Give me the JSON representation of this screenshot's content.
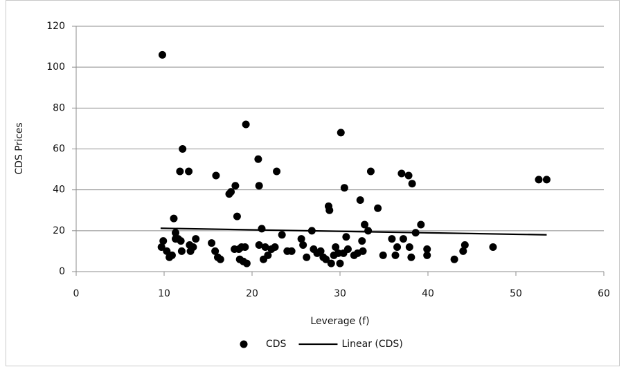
{
  "chart_data": {
    "type": "scatter",
    "x_label": "Leverage (f)",
    "y_label": "CDS Prices",
    "xlim": [
      0,
      60
    ],
    "xticks": [
      0,
      10,
      20,
      30,
      40,
      50,
      60
    ],
    "ylim": [
      0,
      120
    ],
    "yticks": [
      0,
      20,
      40,
      60,
      80,
      100,
      120
    ],
    "grid": true,
    "legend": "bottom",
    "series": [
      {
        "name": "CDS",
        "color": "#000000",
        "mode": "markers",
        "x": [
          9.8,
          9.7,
          9.9,
          10.3,
          10.6,
          10.9,
          11.1,
          11.3,
          11.3,
          11.6,
          11.9,
          12.0,
          11.8,
          12.1,
          12.8,
          12.9,
          13.0,
          13.3,
          13.6,
          15.4,
          15.8,
          15.9,
          16.1,
          16.4,
          17.4,
          17.6,
          18.1,
          18.0,
          18.3,
          18.5,
          18.6,
          18.8,
          19.0,
          19.2,
          19.3,
          19.4,
          20.7,
          20.8,
          20.8,
          21.1,
          21.3,
          21.5,
          21.8,
          22.2,
          22.6,
          22.8,
          23.4,
          24.0,
          24.5,
          25.6,
          25.8,
          26.2,
          26.8,
          27.0,
          27.4,
          27.8,
          28.1,
          28.4,
          28.7,
          28.8,
          29.0,
          29.3,
          29.5,
          29.8,
          30.0,
          30.1,
          30.4,
          30.5,
          30.7,
          30.9,
          31.6,
          32.0,
          32.3,
          32.5,
          32.6,
          32.8,
          33.2,
          33.5,
          34.3,
          34.9,
          35.9,
          36.3,
          36.5,
          37.0,
          37.2,
          37.8,
          37.9,
          38.1,
          38.2,
          38.6,
          39.2,
          39.9,
          39.9,
          43.0,
          44.0,
          44.2,
          47.4,
          52.6,
          53.5
        ],
        "y": [
          106,
          12,
          15,
          10,
          7,
          8,
          26,
          19,
          16,
          16,
          15,
          10,
          49,
          60,
          49,
          13,
          10,
          12,
          16,
          14,
          10,
          47,
          7,
          6,
          38,
          39,
          42,
          11,
          27,
          11,
          6,
          12,
          5,
          12,
          72,
          4,
          55,
          42,
          13,
          21,
          6,
          12,
          8,
          11,
          12,
          49,
          18,
          10,
          10,
          16,
          13,
          7,
          20,
          11,
          9,
          10,
          7,
          6,
          32,
          30,
          4,
          8,
          12,
          9,
          4,
          68,
          9,
          41,
          17,
          11,
          8,
          9,
          35,
          15,
          10,
          23,
          20,
          49,
          31,
          8,
          16,
          8,
          12,
          48,
          16,
          47,
          12,
          7,
          43,
          19,
          23,
          11,
          8,
          6,
          10,
          13,
          12,
          45,
          45
        ]
      },
      {
        "name": "Linear (CDS)",
        "color": "#000000",
        "mode": "line",
        "x": [
          9.6,
          53.5
        ],
        "y": [
          21.2,
          18
        ]
      }
    ]
  }
}
